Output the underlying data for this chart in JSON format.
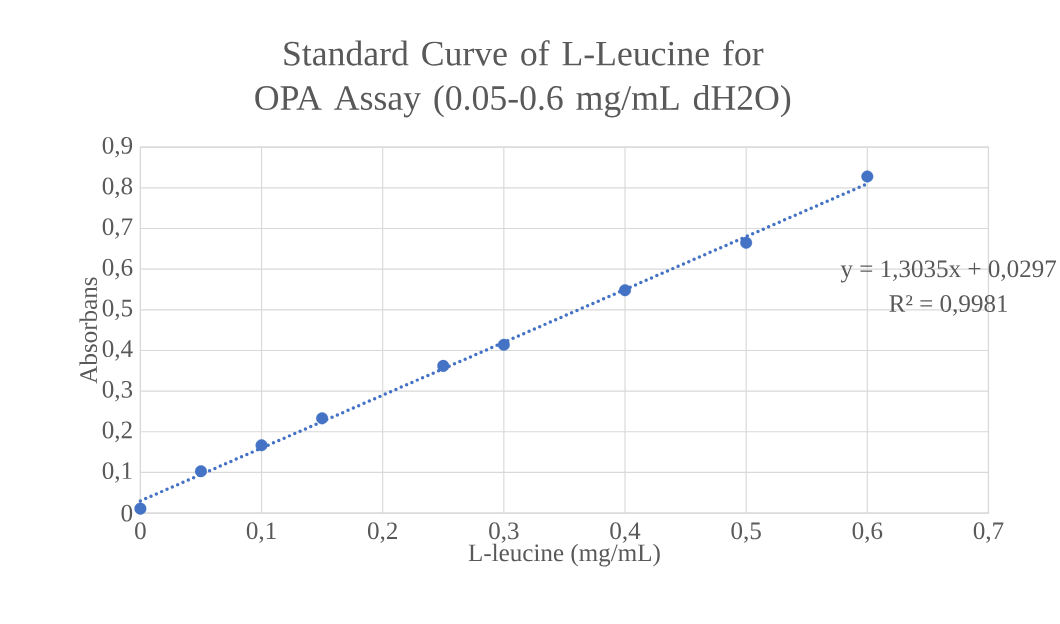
{
  "chart_data": {
    "type": "scatter",
    "title": "Standard Curve of L-Leucine for OPA Assay (0.05-0.6 mg/mL dH2O)",
    "xlabel": "L-leucine (mg/mL)",
    "ylabel": "Absorbans",
    "x": [
      0,
      0.05,
      0.1,
      0.15,
      0.25,
      0.3,
      0.4,
      0.5,
      0.6
    ],
    "series": [
      {
        "color": "#4472c4",
        "marker": "circle",
        "values": [
          0.011,
          0.103,
          0.167,
          0.233,
          0.362,
          0.414,
          0.548,
          0.665,
          0.828
        ]
      },
      {
        "type": "line",
        "color": "#4472c4",
        "line_style": "dotted",
        "marker": "none",
        "x": [
          0,
          0.6
        ],
        "values": [
          0.03,
          0.81
        ]
      }
    ],
    "xlim": [
      0,
      0.7
    ],
    "ylim": [
      0,
      0.9
    ],
    "xticks": [
      {
        "value": 0,
        "label": "0"
      },
      {
        "value": 0.1,
        "label": "0,1"
      },
      {
        "value": 0.2,
        "label": "0,2"
      },
      {
        "value": 0.3,
        "label": "0,3"
      },
      {
        "value": 0.4,
        "label": "0,4"
      },
      {
        "value": 0.5,
        "label": "0,5"
      },
      {
        "value": 0.6,
        "label": "0,6"
      },
      {
        "value": 0.7,
        "label": "0,7"
      }
    ],
    "yticks": [
      {
        "value": 0,
        "label": "0"
      },
      {
        "value": 0.1,
        "label": "0,1"
      },
      {
        "value": 0.2,
        "label": "0,2"
      },
      {
        "value": 0.3,
        "label": "0,3"
      },
      {
        "value": 0.4,
        "label": "0,4"
      },
      {
        "value": 0.5,
        "label": "0,5"
      },
      {
        "value": 0.6,
        "label": "0,6"
      },
      {
        "value": 0.7,
        "label": "0,7"
      },
      {
        "value": 0.8,
        "label": "0,8"
      },
      {
        "value": 0.9,
        "label": "0,9"
      }
    ],
    "grid": true,
    "annotations": [
      "y = 1,3035x + 0,0297",
      "R² = 0,9981"
    ]
  }
}
